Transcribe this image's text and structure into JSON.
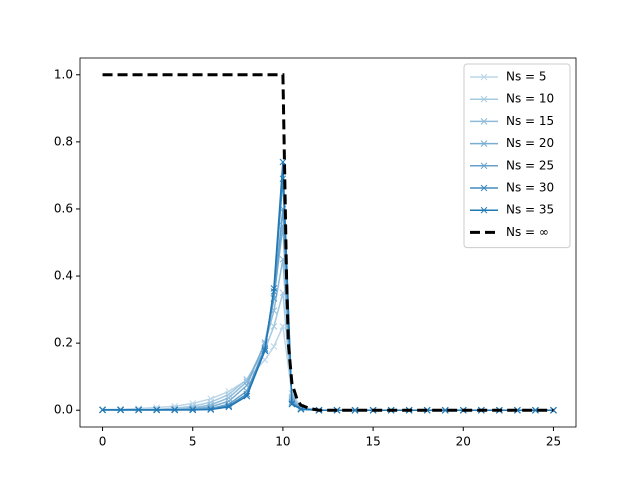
{
  "chart_data": {
    "type": "line",
    "x": [
      0,
      1,
      2,
      3,
      4,
      5,
      6,
      7,
      8,
      9,
      9.5,
      10,
      10.5,
      11,
      12,
      13,
      14,
      15,
      16,
      17,
      18,
      19,
      20,
      21,
      22,
      23,
      24,
      25
    ],
    "series": [
      {
        "name": "Ns = 5",
        "color": "#bcd6e8",
        "marker": "x",
        "values": [
          0.002,
          0.003,
          0.005,
          0.008,
          0.012,
          0.02,
          0.034,
          0.056,
          0.09,
          0.15,
          0.19,
          0.25,
          0.05,
          0.01,
          0,
          0,
          0,
          0,
          0,
          0,
          0,
          0,
          0,
          0,
          0,
          0,
          0,
          0
        ]
      },
      {
        "name": "Ns = 10",
        "color": "#a5c9e1",
        "marker": "x",
        "values": [
          0.001,
          0.001,
          0.002,
          0.003,
          0.006,
          0.012,
          0.024,
          0.047,
          0.092,
          0.18,
          0.25,
          0.35,
          0.04,
          0.008,
          0,
          0,
          0,
          0,
          0,
          0,
          0,
          0,
          0,
          0,
          0,
          0,
          0,
          0
        ]
      },
      {
        "name": "Ns = 15",
        "color": "#8fbbda",
        "marker": "x",
        "values": [
          0.001,
          0.001,
          0.001,
          0.001,
          0.003,
          0.007,
          0.016,
          0.037,
          0.085,
          0.196,
          0.297,
          0.45,
          0.035,
          0.006,
          0,
          0,
          0,
          0,
          0,
          0,
          0,
          0,
          0,
          0,
          0,
          0,
          0,
          0
        ]
      },
      {
        "name": "Ns = 20",
        "color": "#79add2",
        "marker": "x",
        "values": [
          0.001,
          0.001,
          0.001,
          0.001,
          0.001,
          0.004,
          0.01,
          0.027,
          0.074,
          0.202,
          0.334,
          0.55,
          0.03,
          0.005,
          0,
          0,
          0,
          0,
          0,
          0,
          0,
          0,
          0,
          0,
          0,
          0,
          0,
          0
        ]
      },
      {
        "name": "Ns = 25",
        "color": "#63a0cb",
        "marker": "x",
        "values": [
          0.001,
          0.001,
          0.001,
          0.001,
          0.001,
          0.002,
          0.005,
          0.018,
          0.057,
          0.185,
          0.333,
          0.6,
          0.025,
          0.004,
          0,
          0,
          0,
          0,
          0,
          0,
          0,
          0,
          0,
          0,
          0,
          0,
          0,
          0
        ]
      },
      {
        "name": "Ns = 30",
        "color": "#418bbf",
        "marker": "x",
        "values": [
          0.001,
          0.001,
          0.001,
          0.001,
          0.001,
          0.001,
          0.003,
          0.013,
          0.048,
          0.182,
          0.354,
          0.69,
          0.02,
          0.003,
          0,
          0,
          0,
          0,
          0,
          0,
          0,
          0,
          0,
          0,
          0,
          0,
          0,
          0
        ]
      },
      {
        "name": "Ns = 35",
        "color": "#1f77b4",
        "marker": "x",
        "values": [
          0.001,
          0.001,
          0.001,
          0.001,
          0.001,
          0.001,
          0.002,
          0.01,
          0.042,
          0.177,
          0.363,
          0.74,
          0.018,
          0.003,
          0,
          0,
          0,
          0,
          0,
          0,
          0,
          0,
          0,
          0,
          0,
          0,
          0,
          0
        ]
      },
      {
        "name": "Ns = ∞",
        "color": "#000000",
        "dashed": true,
        "x": [
          0,
          10,
          10.1,
          10.2,
          10.3,
          10.5,
          10.8,
          11,
          11.5,
          12,
          25
        ],
        "values": [
          1,
          1,
          0.7,
          0.4,
          0.2,
          0.08,
          0.03,
          0.015,
          0.005,
          0,
          0
        ]
      }
    ],
    "xlim": [
      -1.25,
      26.25
    ],
    "xticks": [
      0,
      5,
      10,
      15,
      20,
      25
    ],
    "ylim": [
      -0.05,
      1.05
    ],
    "yticks": [
      {
        "value": 0,
        "label": "0.0"
      },
      {
        "value": 0.2,
        "label": "0.2"
      },
      {
        "value": 0.4,
        "label": "0.4"
      },
      {
        "value": 0.6,
        "label": "0.6"
      },
      {
        "value": 0.8,
        "label": "0.8"
      },
      {
        "value": 1,
        "label": "1.0"
      }
    ],
    "legend": "upper right"
  }
}
